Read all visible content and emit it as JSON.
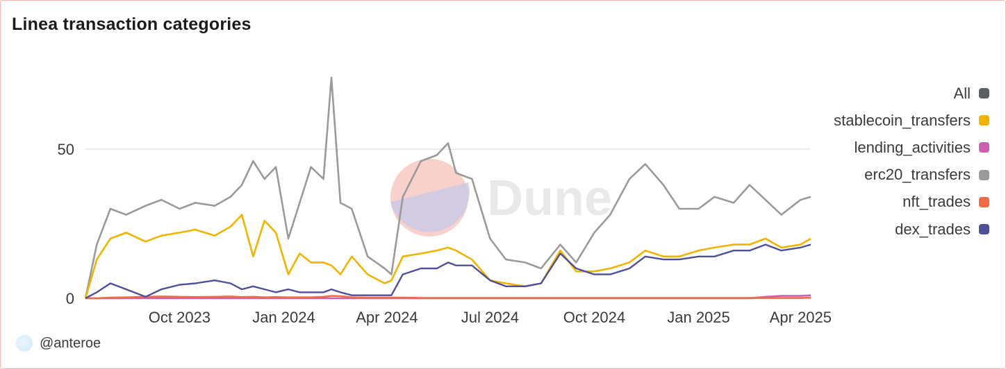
{
  "title": "Linea transaction categories",
  "author": "@anteroe",
  "watermark": "Dune",
  "chart_data": {
    "type": "line",
    "title": "Linea transaction categories",
    "xlabel": "",
    "ylabel": "",
    "ylim": [
      0,
      50
    ],
    "yticks": [
      0,
      50
    ],
    "xticks": [
      "Oct 2023",
      "Jan 2024",
      "Apr 2024",
      "Jul 2024",
      "Oct 2024",
      "Jan 2025",
      "Apr 2025"
    ],
    "x": [
      "2023-07-10",
      "2023-07-20",
      "2023-08-01",
      "2023-08-15",
      "2023-09-01",
      "2023-09-15",
      "2023-10-01",
      "2023-10-15",
      "2023-11-01",
      "2023-11-15",
      "2023-11-25",
      "2023-12-05",
      "2023-12-15",
      "2023-12-25",
      "2024-01-05",
      "2024-01-15",
      "2024-01-25",
      "2024-02-05",
      "2024-02-12",
      "2024-02-20",
      "2024-03-01",
      "2024-03-15",
      "2024-03-30",
      "2024-04-05",
      "2024-04-15",
      "2024-05-01",
      "2024-05-15",
      "2024-05-25",
      "2024-06-01",
      "2024-06-15",
      "2024-07-01",
      "2024-07-15",
      "2024-08-01",
      "2024-08-15",
      "2024-09-01",
      "2024-09-15",
      "2024-10-01",
      "2024-10-15",
      "2024-11-01",
      "2024-11-15",
      "2024-12-01",
      "2024-12-15",
      "2025-01-01",
      "2025-01-15",
      "2025-02-01",
      "2025-02-15",
      "2025-03-01",
      "2025-03-15",
      "2025-04-01",
      "2025-04-10"
    ],
    "grid": "horizontal",
    "legend": "right",
    "series": [
      {
        "name": "All",
        "color": "#5b5e63",
        "values": [
          0,
          18,
          30,
          28,
          31,
          33,
          30,
          32,
          31,
          34,
          38,
          46,
          40,
          44,
          20,
          32,
          44,
          40,
          74,
          32,
          30,
          14,
          10,
          8,
          34,
          46,
          48,
          52,
          42,
          40,
          20,
          13,
          12,
          10,
          18,
          12,
          22,
          28,
          40,
          45,
          38,
          30,
          30,
          34,
          32,
          38,
          33,
          28,
          33,
          34
        ]
      },
      {
        "name": "stablecoin_transfers",
        "color": "#f0b400",
        "values": [
          0,
          13,
          20,
          22,
          19,
          21,
          22,
          23,
          21,
          24,
          28,
          14,
          26,
          22,
          8,
          15,
          12,
          12,
          11,
          8,
          14,
          8,
          5,
          6,
          14,
          15,
          16,
          17,
          16,
          13,
          6,
          5,
          4,
          5,
          16,
          9,
          9,
          10,
          12,
          16,
          14,
          14,
          16,
          17,
          18,
          18,
          20,
          17,
          18,
          20
        ]
      },
      {
        "name": "lending_activities",
        "color": "#cc5fb0",
        "values": [
          0,
          0,
          0,
          0,
          0,
          0,
          0,
          0,
          0,
          0,
          0,
          0,
          0,
          0,
          0,
          0,
          0,
          0,
          0,
          0,
          0,
          0,
          0,
          0,
          0,
          0,
          0,
          0,
          0,
          0,
          0,
          0,
          0,
          0,
          0,
          0,
          0,
          0,
          0,
          0,
          0,
          0,
          0,
          0,
          0,
          0,
          0.5,
          0.8,
          0.8,
          1
        ]
      },
      {
        "name": "erc20_transfers",
        "color": "#9a9a9a",
        "values": [
          0,
          18,
          30,
          28,
          31,
          33,
          30,
          32,
          31,
          34,
          38,
          46,
          40,
          44,
          20,
          32,
          44,
          40,
          74,
          32,
          30,
          14,
          10,
          8,
          34,
          46,
          48,
          52,
          42,
          40,
          20,
          13,
          12,
          10,
          18,
          12,
          22,
          28,
          40,
          45,
          38,
          30,
          30,
          34,
          32,
          38,
          33,
          28,
          33,
          34
        ]
      },
      {
        "name": "nft_trades",
        "color": "#f06a45",
        "values": [
          0,
          0,
          0.2,
          0.3,
          0.5,
          0.6,
          0.5,
          0.4,
          0.5,
          0.6,
          0.4,
          0.5,
          0.3,
          0.4,
          0.3,
          0.3,
          0.3,
          0.5,
          0.8,
          0.7,
          0.3,
          0.2,
          0.2,
          0.2,
          0.2,
          0.1,
          0.1,
          0.1,
          0.1,
          0.1,
          0.1,
          0.1,
          0.1,
          0.1,
          0.1,
          0.1,
          0.1,
          0.1,
          0.1,
          0.1,
          0.1,
          0.1,
          0.1,
          0.1,
          0.1,
          0.1,
          0.1,
          0.1,
          0.1,
          0.2
        ]
      },
      {
        "name": "dex_trades",
        "color": "#4f4f99",
        "values": [
          0,
          2,
          5,
          3,
          0.5,
          3,
          4.5,
          5,
          6,
          5,
          3,
          4,
          3,
          2,
          3,
          2,
          2,
          2,
          3,
          2,
          1,
          1,
          1,
          1,
          8,
          10,
          10,
          12,
          11,
          11,
          6,
          4,
          4,
          5,
          15,
          10,
          8,
          8,
          10,
          14,
          13,
          13,
          14,
          14,
          16,
          16,
          18,
          16,
          17,
          18
        ]
      }
    ]
  }
}
